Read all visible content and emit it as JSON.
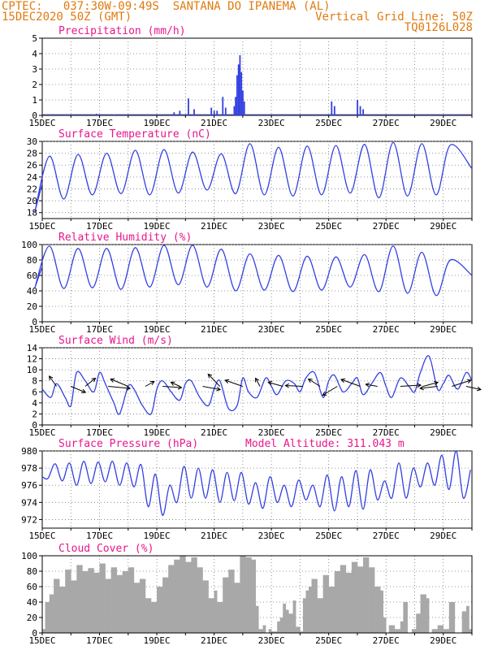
{
  "header": {
    "line1": "CPTEC:   037:30W-09:49S  SANTANA DO IPANEMA (AL)",
    "line2_left": "15DEC2020 50Z (GMT)",
    "line2_right": "Vertical Grid Line: 50Z",
    "line3_right": "TQ0126L028"
  },
  "colors": {
    "header": "#e07a10",
    "title": "#e8168c",
    "line": "#3340e0",
    "cloud": "#a8a8a8",
    "arrow": "#000000"
  },
  "chart_data": [
    {
      "type": "bar",
      "title": "Precipitation (mm/h)",
      "x_labels": [
        "15DEC",
        "17DEC",
        "19DEC",
        "21DEC",
        "23DEC",
        "25DEC",
        "27DEC",
        "29DEC"
      ],
      "ylim": [
        0,
        5
      ],
      "yticks": [
        0,
        1,
        2,
        3,
        4,
        5
      ],
      "x": [
        16.9,
        17.5,
        19.6,
        19.8,
        20.1,
        20.3,
        20.9,
        21.0,
        21.1,
        21.3,
        21.4,
        21.7,
        21.75,
        21.8,
        21.85,
        21.9,
        21.95,
        22.0,
        22.05,
        25.1,
        25.2,
        26.0,
        26.1,
        26.2
      ],
      "values": [
        0.1,
        0.05,
        0.2,
        0.3,
        1.1,
        0.4,
        0.5,
        0.3,
        0.3,
        1.2,
        0.5,
        0.6,
        1.2,
        2.6,
        3.3,
        3.9,
        2.8,
        1.6,
        0.9,
        0.9,
        0.6,
        1.0,
        0.6,
        0.4
      ]
    },
    {
      "type": "line",
      "title": "Surface Temperature (nC)",
      "x_labels": [
        "15DEC",
        "17DEC",
        "19DEC",
        "21DEC",
        "23DEC",
        "25DEC",
        "27DEC",
        "29DEC"
      ],
      "ylim": [
        17,
        30
      ],
      "yticks": [
        18,
        20,
        22,
        24,
        26,
        28,
        30
      ],
      "daily": [
        {
          "x": 15.1,
          "max": 27.5,
          "min": 18.3
        },
        {
          "x": 16.1,
          "max": 27.8,
          "min": 20.3
        },
        {
          "x": 17.1,
          "max": 28.0,
          "min": 21.0
        },
        {
          "x": 18.1,
          "max": 28.5,
          "min": 21.2
        },
        {
          "x": 19.1,
          "max": 28.6,
          "min": 21.0
        },
        {
          "x": 20.1,
          "max": 28.2,
          "min": 21.3
        },
        {
          "x": 21.1,
          "max": 27.9,
          "min": 21.8
        },
        {
          "x": 22.1,
          "max": 29.6,
          "min": 21.2
        },
        {
          "x": 23.1,
          "max": 29.0,
          "min": 21.0
        },
        {
          "x": 24.1,
          "max": 29.2,
          "min": 20.8
        },
        {
          "x": 25.1,
          "max": 29.3,
          "min": 21.0
        },
        {
          "x": 26.1,
          "max": 29.5,
          "min": 21.3
        },
        {
          "x": 27.1,
          "max": 29.8,
          "min": 20.5
        },
        {
          "x": 28.1,
          "max": 29.6,
          "min": 20.8
        },
        {
          "x": 29.1,
          "max": 29.4,
          "min": 21.0
        }
      ]
    },
    {
      "type": "line",
      "title": "Relative Humidity (%)",
      "x_labels": [
        "15DEC",
        "17DEC",
        "19DEC",
        "21DEC",
        "23DEC",
        "25DEC",
        "27DEC",
        "29DEC"
      ],
      "ylim": [
        0,
        100
      ],
      "yticks": [
        0,
        20,
        40,
        60,
        80,
        100
      ],
      "daily": [
        {
          "x": 15.1,
          "max": 98,
          "min": 45
        },
        {
          "x": 16.1,
          "max": 95,
          "min": 43
        },
        {
          "x": 17.1,
          "max": 95,
          "min": 44
        },
        {
          "x": 18.1,
          "max": 96,
          "min": 42
        },
        {
          "x": 19.1,
          "max": 99,
          "min": 45
        },
        {
          "x": 20.1,
          "max": 99,
          "min": 48
        },
        {
          "x": 21.1,
          "max": 94,
          "min": 45
        },
        {
          "x": 22.1,
          "max": 88,
          "min": 40
        },
        {
          "x": 23.1,
          "max": 86,
          "min": 41
        },
        {
          "x": 24.1,
          "max": 85,
          "min": 39
        },
        {
          "x": 25.1,
          "max": 84,
          "min": 41
        },
        {
          "x": 26.1,
          "max": 87,
          "min": 45
        },
        {
          "x": 27.1,
          "max": 98,
          "min": 39
        },
        {
          "x": 28.1,
          "max": 90,
          "min": 37
        },
        {
          "x": 29.1,
          "max": 80,
          "min": 34
        }
      ],
      "end_value": 60
    },
    {
      "type": "line",
      "title": "Surface Wind (m/s)",
      "x_labels": [
        "15DEC",
        "17DEC",
        "19DEC",
        "21DEC",
        "23DEC",
        "25DEC",
        "27DEC",
        "29DEC"
      ],
      "ylim": [
        0,
        14
      ],
      "yticks": [
        0,
        2,
        4,
        6,
        8,
        10,
        12,
        14
      ],
      "x": [
        15.0,
        15.3,
        15.5,
        15.8,
        16.0,
        16.2,
        16.5,
        16.8,
        17.0,
        17.2,
        17.5,
        17.7,
        18.0,
        18.2,
        18.5,
        18.8,
        19.0,
        19.2,
        19.5,
        19.8,
        20.0,
        20.2,
        20.5,
        20.8,
        21.0,
        21.2,
        21.5,
        21.8,
        22.0,
        22.2,
        22.5,
        22.8,
        23.0,
        23.2,
        23.5,
        23.8,
        24.0,
        24.2,
        24.5,
        24.8,
        25.0,
        25.2,
        25.5,
        25.8,
        26.0,
        26.2,
        26.5,
        26.8,
        27.0,
        27.2,
        27.5,
        27.8,
        28.0,
        28.2,
        28.5,
        28.8,
        29.0,
        29.2,
        29.5,
        29.8,
        30.0
      ],
      "values": [
        6.5,
        5.0,
        7.5,
        5.0,
        3.5,
        9.5,
        8.0,
        6.0,
        9.5,
        7.5,
        4.0,
        2.0,
        7.0,
        6.5,
        3.5,
        2.0,
        6.5,
        8.0,
        6.0,
        4.5,
        7.5,
        8.0,
        5.0,
        3.5,
        6.5,
        8.0,
        3.0,
        3.5,
        8.5,
        6.0,
        5.0,
        8.5,
        7.0,
        5.5,
        8.0,
        7.5,
        6.0,
        8.5,
        9.5,
        5.0,
        8.0,
        9.0,
        6.0,
        7.5,
        8.5,
        5.5,
        7.5,
        9.5,
        7.0,
        5.0,
        8.5,
        7.0,
        6.0,
        9.5,
        12.5,
        6.5,
        7.5,
        9.0,
        6.5,
        9.5,
        8.0
      ],
      "arrows": [
        {
          "x": 15.5,
          "dx": -0.5,
          "dy": 2.5
        },
        {
          "x": 16.0,
          "dx": 1.0,
          "dy": -1.5
        },
        {
          "x": 16.5,
          "dx": 0.7,
          "dy": 2.0
        },
        {
          "x": 17.3,
          "dx": 1.5,
          "dy": -0.5
        },
        {
          "x": 18.0,
          "dx": -1.2,
          "dy": 1.8
        },
        {
          "x": 18.6,
          "dx": 0.6,
          "dy": 1.2
        },
        {
          "x": 19.2,
          "dx": 1.3,
          "dy": -0.3
        },
        {
          "x": 19.8,
          "dx": -0.6,
          "dy": 1.0
        },
        {
          "x": 20.6,
          "dx": 1.2,
          "dy": -0.8
        },
        {
          "x": 21.2,
          "dx": -0.8,
          "dy": 3.0
        },
        {
          "x": 22.0,
          "dx": -1.2,
          "dy": 1.5
        },
        {
          "x": 22.6,
          "dx": -0.3,
          "dy": 2.0
        },
        {
          "x": 23.4,
          "dx": -1.0,
          "dy": 1.0
        },
        {
          "x": 24.1,
          "dx": -1.2,
          "dy": 0.2
        },
        {
          "x": 24.7,
          "dx": -0.8,
          "dy": 1.8
        },
        {
          "x": 25.3,
          "dx": -1.0,
          "dy": -2.2
        },
        {
          "x": 26.1,
          "dx": -1.3,
          "dy": 1.7
        },
        {
          "x": 26.7,
          "dx": -0.8,
          "dy": 0.5
        },
        {
          "x": 27.5,
          "dx": 1.4,
          "dy": 0.3
        },
        {
          "x": 28.3,
          "dx": 1.0,
          "dy": 1.0
        },
        {
          "x": 28.8,
          "dx": -1.2,
          "dy": -0.5
        },
        {
          "x": 29.3,
          "dx": 1.3,
          "dy": 1.5
        },
        {
          "x": 29.8,
          "dx": 1.0,
          "dy": -0.8
        }
      ]
    },
    {
      "type": "line",
      "title": "Surface Pressure (hPa)",
      "annotation": "Model Altitude: 311.043 m",
      "x_labels": [
        "15DEC",
        "17DEC",
        "19DEC",
        "21DEC",
        "23DEC",
        "25DEC",
        "27DEC",
        "29DEC"
      ],
      "ylim": [
        971,
        980
      ],
      "yticks": [
        972,
        974,
        976,
        978,
        980
      ],
      "x": [
        15.0,
        15.2,
        15.45,
        15.7,
        15.95,
        16.2,
        16.45,
        16.7,
        16.95,
        17.2,
        17.45,
        17.7,
        17.95,
        18.2,
        18.45,
        18.7,
        18.95,
        19.2,
        19.45,
        19.7,
        19.95,
        20.2,
        20.45,
        20.7,
        20.95,
        21.2,
        21.45,
        21.7,
        21.95,
        22.2,
        22.45,
        22.7,
        22.95,
        23.2,
        23.45,
        23.7,
        23.95,
        24.2,
        24.45,
        24.7,
        24.95,
        25.2,
        25.45,
        25.7,
        25.95,
        26.2,
        26.45,
        26.7,
        26.95,
        27.2,
        27.45,
        27.7,
        27.95,
        28.2,
        28.45,
        28.7,
        28.95,
        29.2,
        29.45,
        29.7,
        29.95
      ],
      "values": [
        977.0,
        976.8,
        978.5,
        976.5,
        978.6,
        976.0,
        978.8,
        976.2,
        978.7,
        976.4,
        978.8,
        976.0,
        978.6,
        975.8,
        978.4,
        973.5,
        977.3,
        972.5,
        976.0,
        974.0,
        978.2,
        974.5,
        978.0,
        974.5,
        977.8,
        974.0,
        977.5,
        974.2,
        977.5,
        973.8,
        976.3,
        973.3,
        977.0,
        974.0,
        976.0,
        973.5,
        976.6,
        974.3,
        976.0,
        973.5,
        977.2,
        973.0,
        977.0,
        973.5,
        977.7,
        973.2,
        977.8,
        974.3,
        976.5,
        974.5,
        978.6,
        974.5,
        978.0,
        975.8,
        978.6,
        976.0,
        979.5,
        975.5,
        980.0,
        974.5,
        977.8
      ]
    },
    {
      "type": "area",
      "title": "Cloud Cover (%)",
      "x_labels": [
        "15DEC",
        "17DEC",
        "19DEC",
        "21DEC",
        "23DEC",
        "25DEC",
        "27DEC",
        "29DEC"
      ],
      "ylim": [
        0,
        100
      ],
      "yticks": [
        0,
        20,
        40,
        60,
        80,
        100
      ],
      "x": [
        15.0,
        15.1,
        15.25,
        15.4,
        15.6,
        15.8,
        16.0,
        16.2,
        16.4,
        16.6,
        16.8,
        17.0,
        17.2,
        17.4,
        17.6,
        17.8,
        18.0,
        18.2,
        18.4,
        18.6,
        18.8,
        19.0,
        19.2,
        19.4,
        19.6,
        19.8,
        20.0,
        20.2,
        20.4,
        20.6,
        20.8,
        21.0,
        21.1,
        21.3,
        21.5,
        21.7,
        21.9,
        22.1,
        22.3,
        22.45,
        22.55,
        22.7,
        22.8,
        22.9,
        23.0,
        23.2,
        23.3,
        23.4,
        23.5,
        23.6,
        23.75,
        23.85,
        24.0,
        24.1,
        24.2,
        24.3,
        24.4,
        24.6,
        24.8,
        25.0,
        25.2,
        25.4,
        25.6,
        25.8,
        26.0,
        26.2,
        26.4,
        26.6,
        26.8,
        26.9,
        27.0,
        27.1,
        27.3,
        27.5,
        27.6,
        27.75,
        27.9,
        28.05,
        28.2,
        28.4,
        28.5,
        28.6,
        28.8,
        29.0,
        29.2,
        29.4,
        29.5,
        29.65,
        29.8,
        29.9,
        30.0
      ],
      "values": [
        5,
        40,
        50,
        70,
        60,
        82,
        68,
        88,
        80,
        84,
        78,
        90,
        70,
        85,
        75,
        80,
        85,
        65,
        70,
        45,
        40,
        60,
        72,
        88,
        95,
        100,
        92,
        98,
        85,
        68,
        45,
        55,
        40,
        72,
        82,
        65,
        100,
        98,
        95,
        35,
        5,
        10,
        0,
        5,
        2,
        15,
        20,
        38,
        30,
        25,
        42,
        8,
        2,
        45,
        55,
        60,
        70,
        45,
        75,
        60,
        80,
        88,
        78,
        92,
        86,
        98,
        85,
        60,
        55,
        20,
        0,
        10,
        5,
        15,
        40,
        0,
        5,
        25,
        50,
        45,
        0,
        5,
        10,
        5,
        40,
        0,
        0,
        28,
        35,
        5,
        0
      ]
    }
  ]
}
